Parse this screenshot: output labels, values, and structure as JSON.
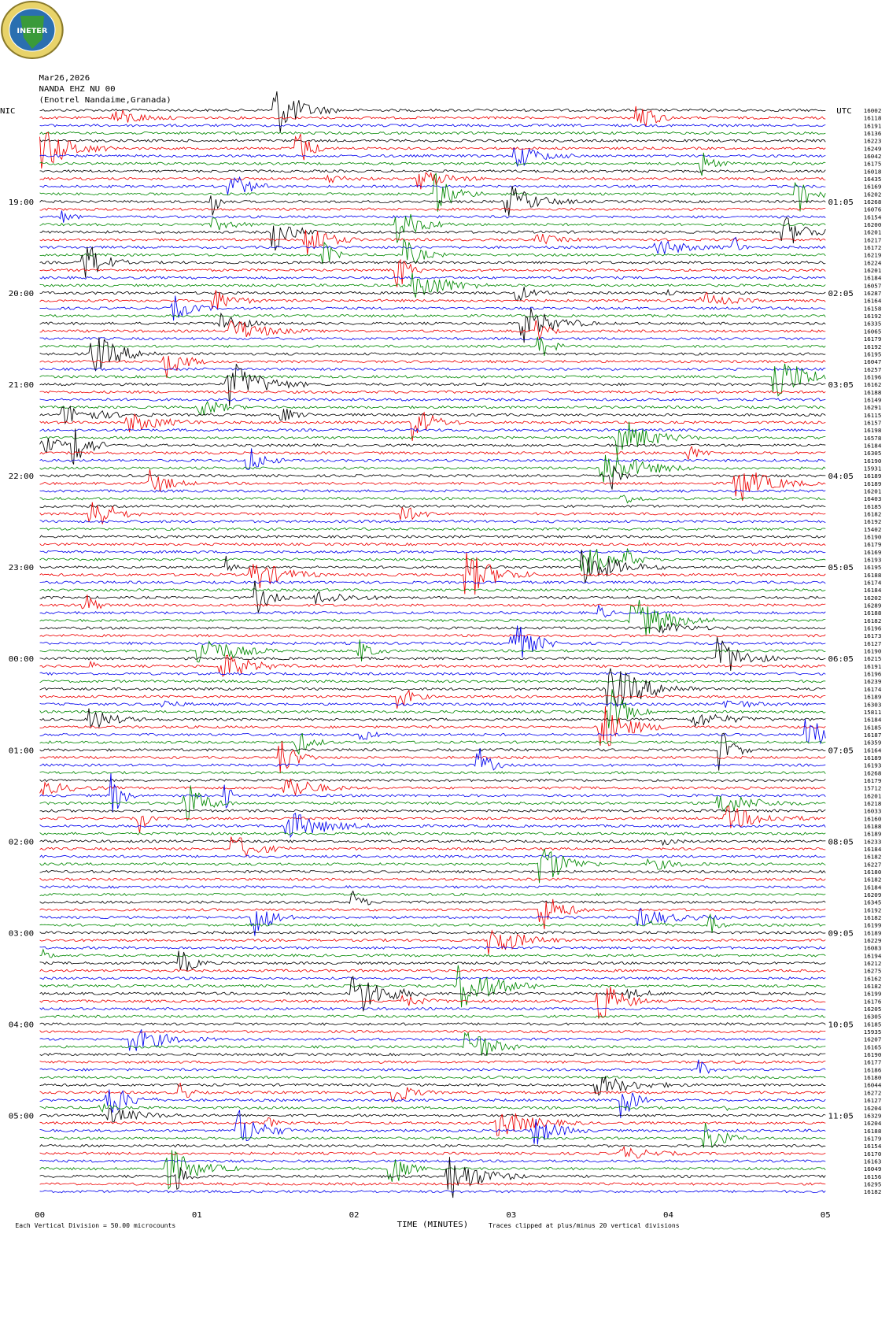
{
  "logo": "INETER",
  "header": [
    "Mar26,2026",
    "NANDA EHZ NU 00",
    "(Enotrel Nandaime,Granada)"
  ],
  "left_axis": {
    "title": "NIC",
    "labels": [
      "19:00",
      "20:00",
      "21:00",
      "22:00",
      "23:00",
      "00:00",
      "01:00",
      "02:00",
      "03:00",
      "04:00",
      "05:00"
    ]
  },
  "right_axis": {
    "title": "UTC",
    "labels": [
      "01:05",
      "02:05",
      "03:05",
      "04:05",
      "05:05",
      "06:05",
      "07:05",
      "08:05",
      "09:05",
      "10:05",
      "11:05"
    ]
  },
  "trace_values": [
    "16002",
    "16118",
    "16191",
    "16136",
    "16223",
    "16249",
    "16042",
    "16175",
    "16018",
    "16435",
    "16169",
    "16202",
    "16268",
    "16076",
    "16154",
    "16200",
    "16201",
    "16217",
    "16172",
    "16219",
    "16224",
    "16201",
    "16184",
    "16057",
    "16287",
    "16164",
    "16158",
    "16192",
    "16335",
    "16065",
    "16179",
    "16192",
    "16195",
    "16047",
    "16257",
    "16196",
    "16162",
    "16188",
    "16149",
    "16291",
    "16115",
    "16157",
    "16198",
    "16578",
    "16184",
    "16305",
    "16190",
    "15931",
    "16189",
    "16189",
    "16201",
    "16403",
    "16185",
    "16182",
    "16192",
    "15402",
    "16190",
    "16179",
    "16169",
    "16193",
    "16195",
    "16188",
    "16174",
    "16184",
    "16202",
    "16289",
    "16188",
    "16182",
    "16196",
    "16173",
    "16127",
    "16190",
    "16215",
    "16191",
    "16196",
    "16239",
    "16174",
    "16189",
    "16303",
    "15811",
    "16184",
    "16185",
    "16187",
    "16359",
    "16164",
    "16189",
    "16193",
    "16268",
    "16179",
    "15712",
    "16201",
    "16218",
    "16033",
    "16160",
    "16188",
    "16189",
    "16233",
    "16184",
    "16182",
    "16227",
    "16180",
    "16182",
    "16184",
    "16209",
    "16345",
    "16192",
    "16182",
    "16199",
    "16189",
    "16229",
    "16083",
    "16194",
    "16212",
    "16275",
    "16162",
    "16182",
    "16199",
    "16176",
    "16205",
    "16305",
    "16185",
    "15935",
    "16207",
    "16165",
    "16190",
    "16177",
    "16186",
    "16180",
    "16044",
    "16272",
    "16127",
    "16204",
    "16329",
    "16204",
    "16188",
    "16179",
    "16154",
    "16170",
    "16163",
    "16049",
    "16156",
    "16295",
    "16182"
  ],
  "x_axis": {
    "labels": [
      "00",
      "01",
      "02",
      "03",
      "04",
      "05"
    ],
    "title": "TIME (MINUTES)"
  },
  "footer": {
    "left": "Each Vertical Division = 50.00 microcounts",
    "right": "Traces clipped at plus/minus 20 vertical divisions"
  }
}
